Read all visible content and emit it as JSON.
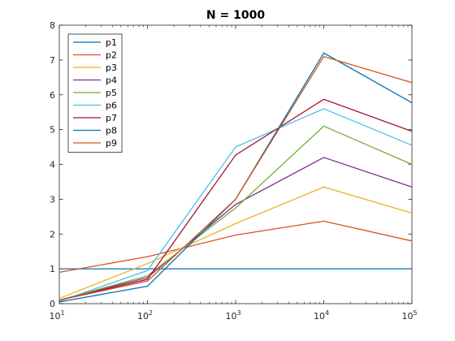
{
  "chart_data": {
    "type": "line",
    "title": "N = 1000",
    "xlabel": "",
    "ylabel": "",
    "x": [
      10,
      100,
      1000,
      10000,
      100000
    ],
    "xscale": "log",
    "xlim": [
      10,
      100000
    ],
    "ylim": [
      0,
      8
    ],
    "x_ticks": [
      {
        "value": 10,
        "base": "10",
        "exp": "1"
      },
      {
        "value": 100,
        "base": "10",
        "exp": "2"
      },
      {
        "value": 1000,
        "base": "10",
        "exp": "3"
      },
      {
        "value": 10000,
        "base": "10",
        "exp": "4"
      },
      {
        "value": 100000,
        "base": "10",
        "exp": "5"
      }
    ],
    "y_ticks": [
      "0",
      "1",
      "2",
      "3",
      "4",
      "5",
      "6",
      "7",
      "8"
    ],
    "grid": false,
    "legend_position": "top-left",
    "series": [
      {
        "name": "p1",
        "color": "#0072bd",
        "values": [
          1.0,
          1.0,
          1.0,
          1.0,
          1.0
        ]
      },
      {
        "name": "p2",
        "color": "#d95319",
        "values": [
          0.9,
          1.35,
          1.97,
          2.37,
          1.8
        ]
      },
      {
        "name": "p3",
        "color": "#edb120",
        "values": [
          0.15,
          1.15,
          2.3,
          3.35,
          2.6
        ]
      },
      {
        "name": "p4",
        "color": "#7e2f8e",
        "values": [
          0.1,
          0.75,
          2.85,
          4.2,
          3.35
        ]
      },
      {
        "name": "p5",
        "color": "#77ac30",
        "values": [
          0.1,
          0.8,
          2.75,
          5.1,
          4.0
        ]
      },
      {
        "name": "p6",
        "color": "#4dbeee",
        "values": [
          0.07,
          0.95,
          4.5,
          5.6,
          4.55
        ]
      },
      {
        "name": "p7",
        "color": "#a2142f",
        "values": [
          0.1,
          0.7,
          4.27,
          5.87,
          4.95
        ]
      },
      {
        "name": "p8",
        "color": "#0072bd",
        "values": [
          0.05,
          0.5,
          3.0,
          7.2,
          5.77
        ]
      },
      {
        "name": "p9",
        "color": "#d95319",
        "values": [
          0.1,
          0.65,
          3.0,
          7.1,
          6.35
        ]
      }
    ]
  }
}
